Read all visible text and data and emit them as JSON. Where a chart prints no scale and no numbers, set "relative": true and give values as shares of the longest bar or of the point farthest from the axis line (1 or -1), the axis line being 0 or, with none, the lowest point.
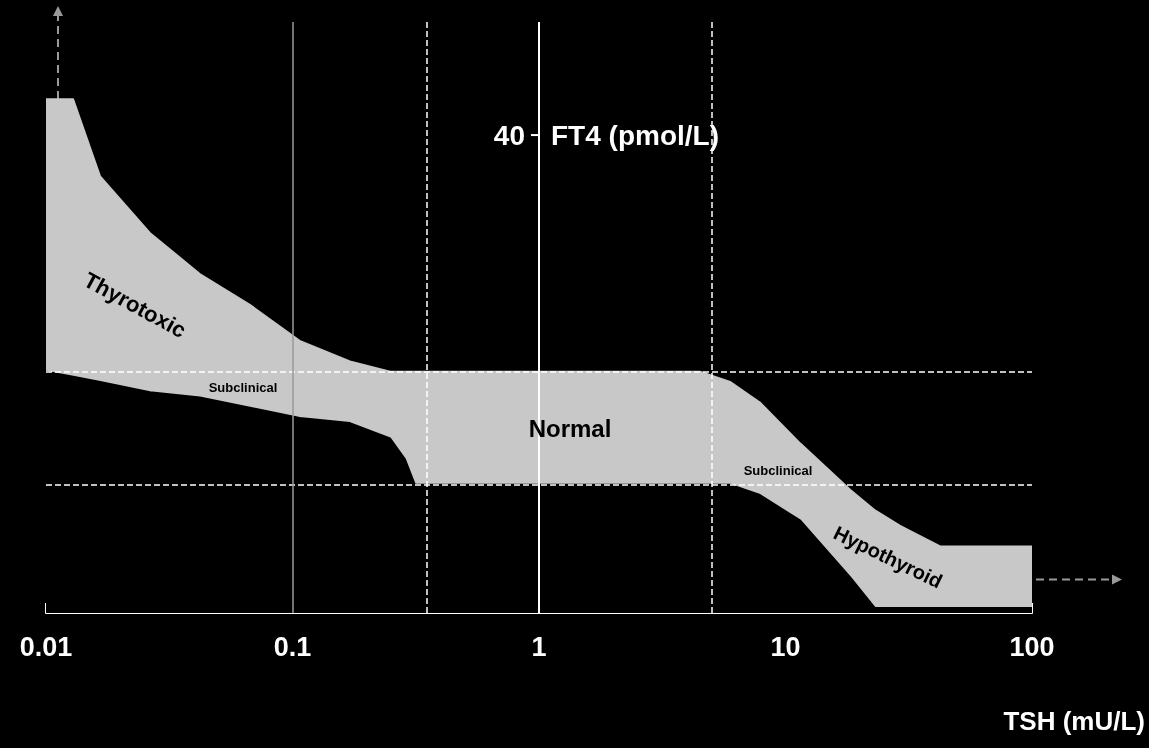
{
  "chart_data": {
    "type": "area",
    "relative": true,
    "xlabel": "TSH (mU/L)",
    "ylabel": "FT4 (pmol/L)",
    "log": "x",
    "xlim": [
      0.01,
      100
    ],
    "xticks": [
      0.01,
      0.1,
      1,
      10,
      100
    ],
    "grid": false,
    "tick_labels": "x",
    "x": [
      0.01,
      0.0129,
      0.0166,
      0.0264,
      0.0421,
      0.0672,
      0.107,
      0.171,
      0.249,
      0.286,
      0.314,
      0.361,
      4.5,
      5.96,
      7.88,
      11.5,
      18.3,
      23.1,
      29.2,
      42.4,
      51,
      100
    ],
    "series": [
      {
        "color": "#c8c8c8",
        "values": [
          1,
          1,
          0.85,
          0.74,
          0.66,
          0.6,
          0.53,
          0.49,
          0.47,
          0.47,
          0.47,
          0.47,
          0.47,
          0.45,
          0.41,
          0.33,
          0.24,
          0.2,
          0.17,
          0.13,
          0.13,
          0.13
        ]
      },
      {
        "color": "#000000",
        "values": [
          0.47,
          0.46,
          0.45,
          0.43,
          0.42,
          0.4,
          0.38,
          0.37,
          0.34,
          0.3,
          0.25,
          0.25,
          0.25,
          0.25,
          0.23,
          0.18,
          0.07,
          0.01,
          0.01,
          0.01,
          0.01,
          0.01
        ]
      }
    ],
    "ref_lines": [
      {
        "axis": "y",
        "value": 0.47,
        "color": "#ffffff",
        "line_style": "dashed"
      },
      {
        "axis": "y",
        "value": 0.25,
        "color": "#ffffff",
        "line_style": "dashed"
      },
      {
        "axis": "x",
        "value": 0.35,
        "color": "#ffffff",
        "line_style": "dashed"
      },
      {
        "axis": "x",
        "value": 5,
        "color": "#ffffff",
        "line_style": "dashed"
      },
      {
        "axis": "x",
        "value": 0.1,
        "color": "#9a9a9a",
        "line_style": "solid"
      },
      {
        "axis": "x",
        "value": 1,
        "color": "#ffffff",
        "line_style": "solid"
      }
    ],
    "annotations": [
      {
        "text": "40",
        "x": 1,
        "y": 0.93
      },
      "Thyrotoxic",
      "Subclinical",
      "Normal",
      "Subclinical",
      "Hypothyroid"
    ]
  }
}
